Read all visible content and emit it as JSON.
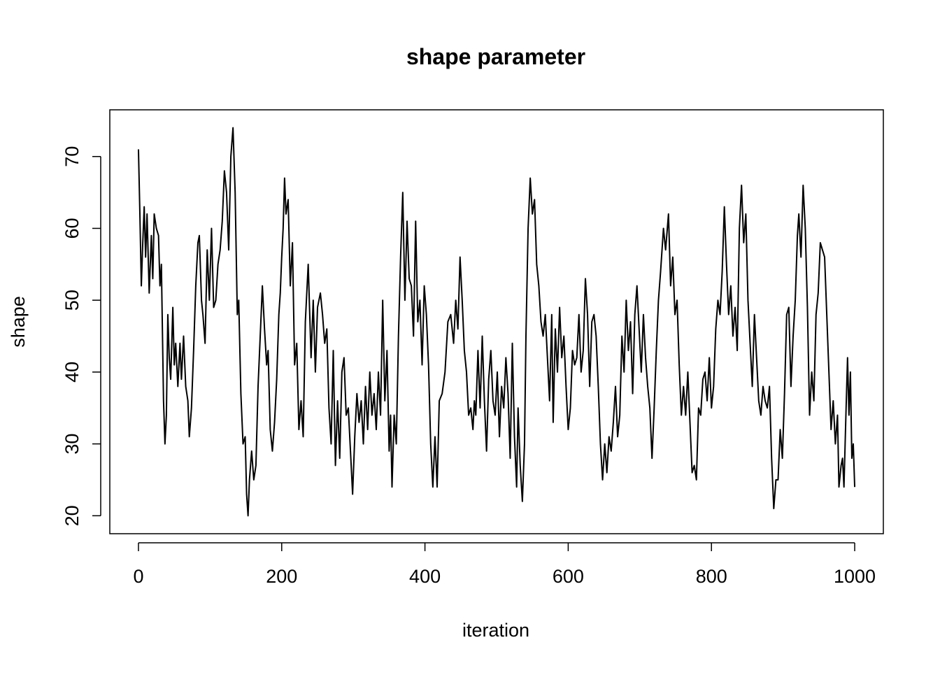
{
  "chart_data": {
    "type": "line",
    "title": "shape parameter",
    "x_label": "iteration",
    "y_label": "shape",
    "xlim": [
      -40,
      1040
    ],
    "ylim": [
      17.5,
      76.5
    ],
    "xticks": [
      0,
      200,
      400,
      600,
      800,
      1000
    ],
    "yticks": [
      20,
      30,
      40,
      50,
      60,
      70
    ],
    "color": "#000000",
    "frame": true,
    "x": [
      0,
      2,
      4,
      6,
      8,
      10,
      12,
      15,
      18,
      20,
      22,
      25,
      28,
      30,
      32,
      35,
      37,
      39,
      41,
      43,
      45,
      48,
      50,
      52,
      55,
      58,
      60,
      63,
      66,
      69,
      71,
      74,
      77,
      80,
      83,
      85,
      88,
      90,
      93,
      96,
      99,
      102,
      105,
      108,
      111,
      114,
      117,
      120,
      123,
      126,
      129,
      132,
      135,
      138,
      140,
      143,
      146,
      149,
      151,
      153,
      155,
      158,
      161,
      164,
      167,
      170,
      173,
      176,
      179,
      181,
      184,
      187,
      190,
      193,
      196,
      198,
      200,
      202,
      204,
      206,
      209,
      212,
      215,
      218,
      221,
      224,
      227,
      230,
      233,
      237,
      241,
      244,
      247,
      250,
      254,
      257,
      260,
      263,
      266,
      269,
      272,
      275,
      278,
      281,
      284,
      287,
      290,
      293,
      296,
      299,
      302,
      305,
      308,
      311,
      314,
      317,
      320,
      323,
      326,
      329,
      332,
      335,
      338,
      341,
      344,
      347,
      350,
      352,
      354,
      357,
      360,
      363,
      366,
      369,
      372,
      375,
      378,
      381,
      384,
      387,
      390,
      393,
      396,
      399,
      402,
      405,
      408,
      411,
      414,
      417,
      420,
      424,
      428,
      432,
      436,
      440,
      443,
      446,
      449,
      452,
      455,
      458,
      461,
      464,
      467,
      469,
      471,
      474,
      477,
      480,
      483,
      486,
      489,
      492,
      495,
      498,
      501,
      504,
      507,
      510,
      513,
      516,
      519,
      522,
      525,
      528,
      530,
      533,
      536,
      539,
      541,
      544,
      547,
      550,
      553,
      556,
      559,
      562,
      565,
      568,
      571,
      574,
      577,
      579,
      582,
      585,
      588,
      591,
      594,
      597,
      600,
      603,
      606,
      609,
      612,
      615,
      618,
      621,
      624,
      627,
      630,
      633,
      636,
      639,
      642,
      645,
      648,
      651,
      654,
      657,
      660,
      663,
      666,
      669,
      672,
      675,
      678,
      681,
      684,
      687,
      690,
      693,
      696,
      699,
      702,
      705,
      708,
      711,
      714,
      717,
      720,
      723,
      726,
      729,
      733,
      736,
      740,
      743,
      746,
      749,
      752,
      755,
      758,
      761,
      764,
      767,
      770,
      773,
      776,
      779,
      782,
      785,
      788,
      791,
      794,
      797,
      800,
      803,
      806,
      809,
      812,
      815,
      818,
      821,
      824,
      827,
      830,
      833,
      836,
      839,
      842,
      845,
      848,
      851,
      854,
      857,
      860,
      863,
      866,
      869,
      872,
      875,
      878,
      881,
      884,
      887,
      890,
      893,
      896,
      899,
      902,
      905,
      908,
      911,
      914,
      917,
      920,
      922,
      925,
      928,
      931,
      934,
      937,
      940,
      943,
      946,
      949,
      952,
      955,
      958,
      961,
      964,
      967,
      970,
      973,
      976,
      978,
      981,
      983,
      985,
      988,
      990,
      992,
      994,
      996,
      998,
      1000
    ],
    "values": [
      71,
      62,
      52,
      58,
      63,
      56,
      62,
      51,
      59,
      53,
      62,
      60,
      59,
      52,
      55,
      36,
      30,
      34,
      48,
      42,
      39,
      49,
      41,
      44,
      38,
      44,
      39,
      45,
      38,
      36,
      31,
      35,
      43,
      52,
      58,
      59,
      50,
      48,
      44,
      57,
      50,
      60,
      49,
      50,
      55,
      57,
      61,
      68,
      65,
      57,
      70,
      74,
      65,
      48,
      50,
      37,
      30,
      31,
      23,
      20,
      25,
      29,
      25,
      27,
      38,
      45,
      52,
      46,
      41,
      43,
      32,
      29,
      33,
      39,
      48,
      51,
      56,
      60,
      67,
      62,
      64,
      52,
      58,
      41,
      44,
      32,
      36,
      31,
      47,
      55,
      42,
      50,
      40,
      49,
      51,
      48,
      44,
      46,
      35,
      30,
      43,
      27,
      36,
      28,
      40,
      42,
      34,
      35,
      29,
      23,
      31,
      37,
      33,
      36,
      30,
      38,
      32,
      40,
      34,
      37,
      32,
      40,
      34,
      50,
      36,
      43,
      29,
      34,
      24,
      34,
      30,
      45,
      56,
      65,
      50,
      61,
      53,
      52,
      45,
      61,
      47,
      50,
      41,
      52,
      48,
      41,
      30,
      24,
      31,
      24,
      36,
      37,
      40,
      47,
      48,
      44,
      50,
      46,
      56,
      50,
      43,
      40,
      34,
      35,
      32,
      36,
      34,
      43,
      35,
      45,
      36,
      29,
      39,
      43,
      36,
      34,
      40,
      31,
      38,
      35,
      42,
      37,
      28,
      44,
      31,
      24,
      35,
      27,
      22,
      30,
      45,
      60,
      67,
      62,
      64,
      55,
      52,
      47,
      45,
      48,
      42,
      36,
      48,
      33,
      46,
      40,
      49,
      42,
      45,
      38,
      32,
      35,
      43,
      41,
      42,
      48,
      40,
      43,
      53,
      48,
      38,
      47,
      48,
      45,
      38,
      30,
      25,
      30,
      26,
      31,
      29,
      33,
      38,
      31,
      34,
      45,
      40,
      50,
      43,
      47,
      37,
      48,
      52,
      46,
      40,
      48,
      42,
      38,
      35,
      28,
      35,
      43,
      50,
      54,
      60,
      57,
      62,
      52,
      56,
      48,
      50,
      41,
      34,
      38,
      34,
      40,
      33,
      26,
      27,
      25,
      35,
      34,
      39,
      40,
      36,
      42,
      35,
      38,
      46,
      50,
      48,
      54,
      63,
      55,
      48,
      52,
      45,
      49,
      43,
      60,
      66,
      58,
      62,
      50,
      44,
      38,
      48,
      42,
      36,
      34,
      38,
      36,
      35,
      38,
      28,
      21,
      25,
      25,
      32,
      28,
      37,
      48,
      49,
      38,
      45,
      50,
      59,
      62,
      56,
      66,
      60,
      49,
      34,
      40,
      36,
      48,
      51,
      58,
      57,
      56,
      48,
      40,
      32,
      36,
      30,
      34,
      24,
      27,
      28,
      24,
      35,
      42,
      34,
      40,
      28,
      30,
      24
    ]
  }
}
